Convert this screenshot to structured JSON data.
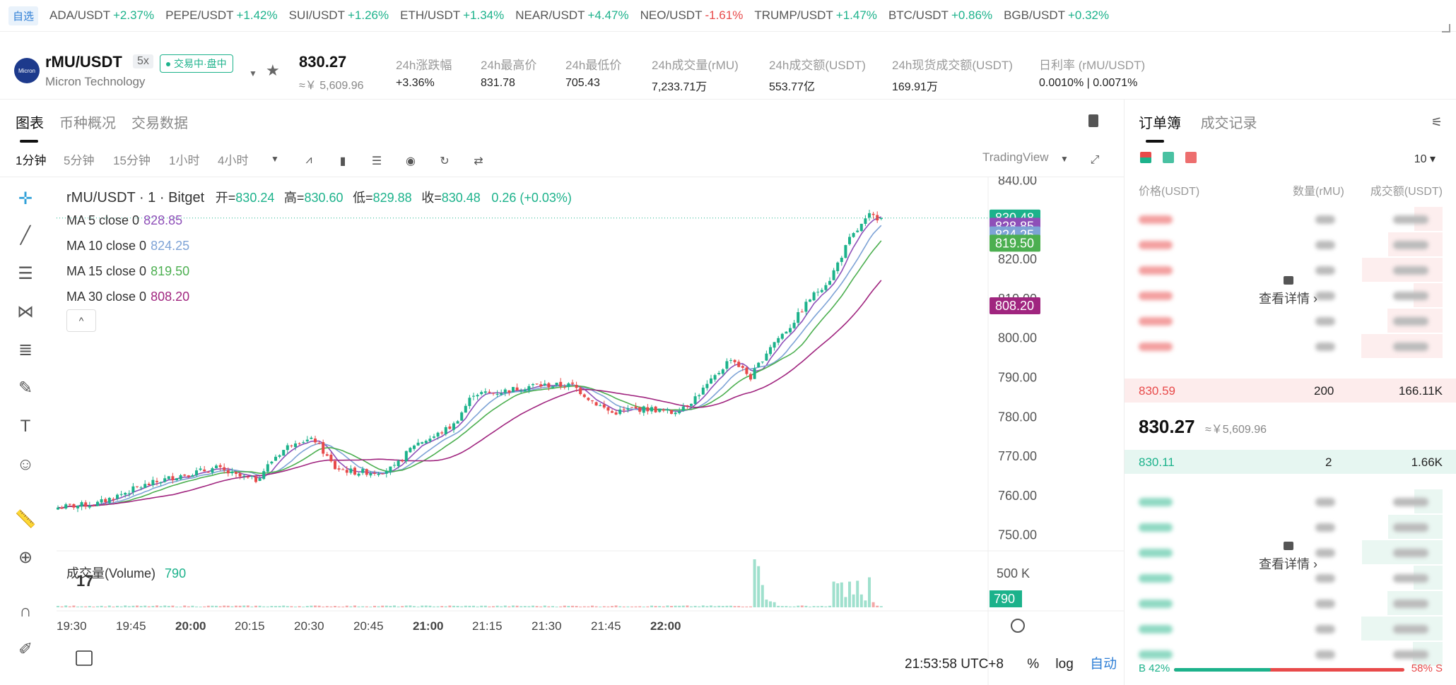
{
  "ticker": {
    "fav_label": "自选",
    "items": [
      {
        "pair": "ADA/USDT",
        "change": "+2.37%",
        "dir": "up"
      },
      {
        "pair": "PEPE/USDT",
        "change": "+1.42%",
        "dir": "up"
      },
      {
        "pair": "SUI/USDT",
        "change": "+1.26%",
        "dir": "up"
      },
      {
        "pair": "ETH/USDT",
        "change": "+1.34%",
        "dir": "up"
      },
      {
        "pair": "NEAR/USDT",
        "change": "+4.47%",
        "dir": "up"
      },
      {
        "pair": "NEO/USDT",
        "change": "-1.61%",
        "dir": "down"
      },
      {
        "pair": "TRUMP/USDT",
        "change": "+1.47%",
        "dir": "up"
      },
      {
        "pair": "BTC/USDT",
        "change": "+0.86%",
        "dir": "up"
      },
      {
        "pair": "BGB/USDT",
        "change": "+0.32%",
        "dir": "up"
      }
    ]
  },
  "header": {
    "logo_text": "Micron",
    "symbol": "rMU/USDT",
    "leverage": "5x",
    "status": "交易中·盘中",
    "name": "Micron Technology",
    "price": "830.27",
    "price_cny": "≈￥ 5,609.96",
    "stats": [
      {
        "label": "24h涨跌幅",
        "value": "+3.36%",
        "dir": "up"
      },
      {
        "label": "24h最高价",
        "value": "831.78",
        "dir": ""
      },
      {
        "label": "24h最低价",
        "value": "705.43",
        "dir": ""
      },
      {
        "label": "24h成交量(rMU)",
        "value": "7,233.71万",
        "dir": ""
      },
      {
        "label": "24h成交额(USDT)",
        "value": "553.77亿",
        "dir": ""
      },
      {
        "label": "24h现货成交额(USDT)",
        "value": "169.91万",
        "dir": ""
      },
      {
        "label": "日利率 (rMU/USDT)",
        "value": "0.0010% | 0.0071%",
        "dir": ""
      }
    ]
  },
  "tabs": [
    "图表",
    "币种概况",
    "交易数据"
  ],
  "toolbar": {
    "intervals": [
      "1分钟",
      "5分钟",
      "15分钟",
      "1小时",
      "4小时"
    ],
    "view_label": "TradingView"
  },
  "chart": {
    "ohlc_title": "rMU/USDT · 1 · Bitget",
    "open_label": "开=",
    "open": "830.24",
    "high_label": "高=",
    "high": "830.60",
    "low_label": "低=",
    "low": "829.88",
    "close_label": "收=",
    "close": "830.48",
    "change": "0.26 (+0.03%)",
    "ma": [
      {
        "label": "MA 5 close 0",
        "value": "828.85",
        "color": "#8e4fb8"
      },
      {
        "label": "MA 10 close 0",
        "value": "824.25",
        "color": "#7ea3d6"
      },
      {
        "label": "MA 15 close 0",
        "value": "819.50",
        "color": "#4caf50"
      },
      {
        "label": "MA 30 close 0",
        "value": "808.20",
        "color": "#a0257f"
      }
    ],
    "price_labels": [
      "840.00",
      "830.00",
      "820.00",
      "810.00",
      "800.00",
      "790.00",
      "780.00",
      "770.00",
      "760.00",
      "750.00"
    ],
    "time_labels": [
      "19:30",
      "19:45",
      "20:00",
      "20:15",
      "20:30",
      "20:45",
      "21:00",
      "21:15",
      "21:30",
      "21:45",
      "22:00"
    ],
    "last_price_tag": "830.48",
    "volume_label": "成交量(Volume)",
    "volume_value": "790",
    "volume_axis_label": "500 K",
    "volume_tag": "790",
    "time_now": "21:53:58 UTC+8",
    "pct_label": "%",
    "log_label": "log",
    "auto_label": "自动",
    "tv_logo": "17"
  },
  "chart_data": {
    "type": "candlestick",
    "ylim": [
      746,
      841
    ],
    "x_labels": [
      "19:30",
      "19:45",
      "20:00",
      "20:15",
      "20:30",
      "20:45",
      "21:00",
      "21:15",
      "21:30",
      "21:45",
      "22:00"
    ],
    "anchors_close": [
      [
        0,
        757
      ],
      [
        10,
        758
      ],
      [
        20,
        762
      ],
      [
        30,
        765
      ],
      [
        40,
        767
      ],
      [
        45,
        765
      ],
      [
        50,
        764
      ],
      [
        55,
        770
      ],
      [
        60,
        774
      ],
      [
        65,
        774
      ],
      [
        70,
        767
      ],
      [
        75,
        766
      ],
      [
        80,
        766
      ],
      [
        85,
        767
      ],
      [
        90,
        773
      ],
      [
        95,
        775
      ],
      [
        100,
        778
      ],
      [
        105,
        786
      ],
      [
        110,
        786
      ],
      [
        115,
        787
      ],
      [
        120,
        788
      ],
      [
        125,
        788
      ],
      [
        130,
        788
      ],
      [
        135,
        784
      ],
      [
        140,
        781
      ],
      [
        145,
        782
      ],
      [
        150,
        782
      ],
      [
        155,
        781
      ],
      [
        160,
        784
      ],
      [
        165,
        789
      ],
      [
        170,
        795
      ],
      [
        175,
        790
      ],
      [
        180,
        798
      ],
      [
        185,
        803
      ],
      [
        190,
        810
      ],
      [
        195,
        815
      ],
      [
        200,
        825
      ],
      [
        205,
        831
      ],
      [
        208,
        830.48
      ]
    ],
    "n_bars": 209,
    "volume_max": 560,
    "ma_last": {
      "ma5": 828.85,
      "ma10": 824.25,
      "ma15": 819.5,
      "ma30": 808.2
    }
  },
  "orderbook": {
    "tabs": [
      "订单簿",
      "成交记录"
    ],
    "depth": "10",
    "headers": [
      "价格(USDT)",
      "数量(rMU)",
      "成交额(USDT)"
    ],
    "view_more": "查看详情",
    "best_ask": {
      "price": "830.59",
      "qty": "200",
      "total": "166.11K"
    },
    "mid_price": "830.27",
    "mid_cny": "≈￥5,609.96",
    "best_bid": {
      "price": "830.11",
      "qty": "2",
      "total": "1.66K"
    },
    "buy_pct": "B 42%",
    "sell_pct": "58% S",
    "buy_ratio": 0.42
  },
  "colors": {
    "up": "#1cb28b",
    "down": "#e84a4a",
    "ma5": "#8e4fb8",
    "ma10": "#7ea3d6",
    "ma15": "#4caf50",
    "ma30": "#a0257f"
  }
}
